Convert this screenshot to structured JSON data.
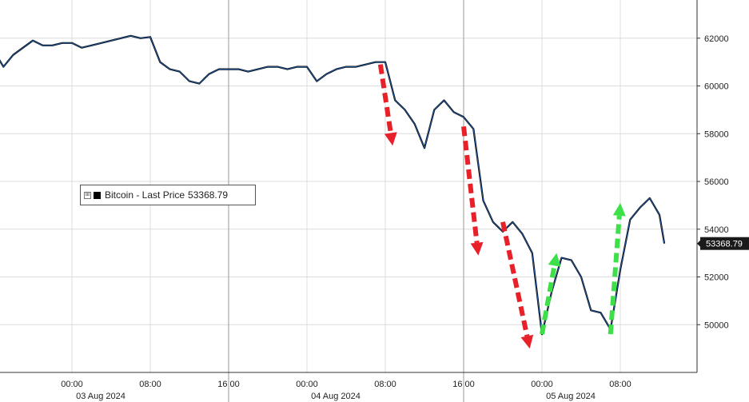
{
  "chart_data": {
    "type": "line",
    "title": "",
    "xlabel": "",
    "ylabel": "",
    "ylim": [
      48000,
      63600
    ],
    "y_ticks": [
      50000,
      52000,
      54000,
      56000,
      58000,
      60000,
      62000
    ],
    "y_tick_labels": [
      "50000",
      "52000",
      "54000",
      "56000",
      "58000",
      "60000",
      "62000"
    ],
    "x_time_ticks": [
      "00:00",
      "08:00",
      "16:00",
      "00:00",
      "08:00",
      "16:00",
      "00:00",
      "08:00"
    ],
    "x_date_labels": [
      "03 Aug 2024",
      "04 Aug 2024",
      "05 Aug 2024"
    ],
    "grid": true,
    "legend_position": "left-middle",
    "series": [
      {
        "name": "Bitcoin - Last Price",
        "color": "#1f4e8c",
        "x": [
          "2024-08-02 16:00",
          "2024-08-02 17:00",
          "2024-08-02 18:00",
          "2024-08-02 19:00",
          "2024-08-02 20:00",
          "2024-08-02 21:00",
          "2024-08-02 22:00",
          "2024-08-02 23:00",
          "2024-08-03 00:00",
          "2024-08-03 01:00",
          "2024-08-03 02:00",
          "2024-08-03 03:00",
          "2024-08-03 04:00",
          "2024-08-03 05:00",
          "2024-08-03 06:00",
          "2024-08-03 07:00",
          "2024-08-03 08:00",
          "2024-08-03 09:00",
          "2024-08-03 10:00",
          "2024-08-03 11:00",
          "2024-08-03 12:00",
          "2024-08-03 13:00",
          "2024-08-03 14:00",
          "2024-08-03 15:00",
          "2024-08-03 16:00",
          "2024-08-03 17:00",
          "2024-08-03 18:00",
          "2024-08-03 19:00",
          "2024-08-03 20:00",
          "2024-08-03 21:00",
          "2024-08-03 22:00",
          "2024-08-03 23:00",
          "2024-08-04 00:00",
          "2024-08-04 01:00",
          "2024-08-04 02:00",
          "2024-08-04 03:00",
          "2024-08-04 04:00",
          "2024-08-04 05:00",
          "2024-08-04 06:00",
          "2024-08-04 07:00",
          "2024-08-04 08:00",
          "2024-08-04 09:00",
          "2024-08-04 10:00",
          "2024-08-04 11:00",
          "2024-08-04 12:00",
          "2024-08-04 13:00",
          "2024-08-04 14:00",
          "2024-08-04 15:00",
          "2024-08-04 16:00",
          "2024-08-04 17:00",
          "2024-08-04 18:00",
          "2024-08-04 19:00",
          "2024-08-04 20:00",
          "2024-08-04 21:00",
          "2024-08-04 22:00",
          "2024-08-04 23:00",
          "2024-08-05 00:00",
          "2024-08-05 01:00",
          "2024-08-05 02:00",
          "2024-08-05 03:00",
          "2024-08-05 04:00",
          "2024-08-05 05:00",
          "2024-08-05 06:00",
          "2024-08-05 07:00",
          "2024-08-05 08:00",
          "2024-08-05 09:00",
          "2024-08-05 10:00",
          "2024-08-05 11:00",
          "2024-08-05 12:00",
          "2024-08-05 12:30"
        ],
        "y": [
          61500,
          60800,
          61300,
          61600,
          61900,
          61700,
          61700,
          61800,
          61800,
          61600,
          61700,
          61800,
          61900,
          62000,
          62100,
          62000,
          62050,
          61000,
          60700,
          60600,
          60200,
          60100,
          60500,
          60700,
          60700,
          60700,
          60600,
          60700,
          60800,
          60800,
          60700,
          60800,
          60800,
          60200,
          60500,
          60700,
          60800,
          60800,
          60900,
          61000,
          61000,
          59400,
          59000,
          58400,
          57400,
          59000,
          59400,
          58900,
          58700,
          58200,
          55200,
          54300,
          53900,
          54300,
          53800,
          53000,
          49600,
          51400,
          52800,
          52700,
          52000,
          50600,
          50500,
          49800,
          52300,
          54400,
          54900,
          55300,
          54600,
          53400
        ]
      }
    ],
    "last_price_label": "53368.79",
    "annotations": [
      {
        "type": "arrow",
        "color": "#e8202a",
        "direction": "down",
        "from": {
          "x": "2024-08-04 07:30",
          "y": 60900
        },
        "to": {
          "x": "2024-08-04 08:45",
          "y": 57500
        }
      },
      {
        "type": "arrow",
        "color": "#e8202a",
        "direction": "down",
        "from": {
          "x": "2024-08-04 16:00",
          "y": 58300
        },
        "to": {
          "x": "2024-08-04 17:30",
          "y": 52900
        }
      },
      {
        "type": "arrow",
        "color": "#e8202a",
        "direction": "down",
        "from": {
          "x": "2024-08-04 20:00",
          "y": 54300
        },
        "to": {
          "x": "2024-08-04 22:45",
          "y": 49000
        }
      },
      {
        "type": "arrow",
        "color": "#3ee04a",
        "direction": "up",
        "from": {
          "x": "2024-08-05 00:00",
          "y": 49600
        },
        "to": {
          "x": "2024-08-05 01:30",
          "y": 53000
        }
      },
      {
        "type": "arrow",
        "color": "#3ee04a",
        "direction": "up",
        "from": {
          "x": "2024-08-05 07:00",
          "y": 49600
        },
        "to": {
          "x": "2024-08-05 08:00",
          "y": 55100
        }
      }
    ]
  },
  "legend": {
    "toggle_glyph": "⊞",
    "series_label": "Bitcoin - Last Price",
    "last_value": "53368.79"
  }
}
